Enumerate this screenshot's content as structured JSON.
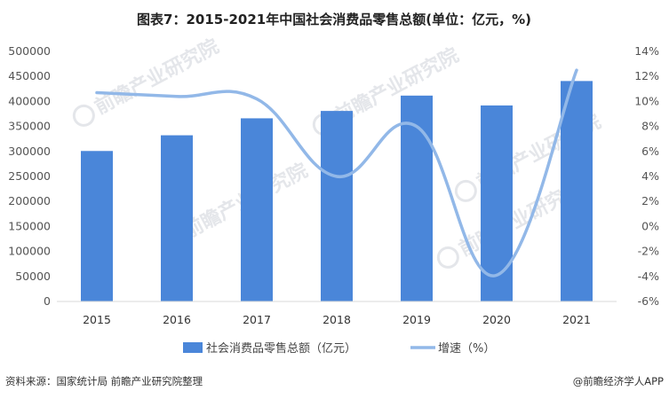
{
  "chart_data": {
    "type": "bar",
    "title": "图表7：2015-2021年中国社会消费品零售总额(单位：亿元，%)",
    "categories": [
      "2015",
      "2016",
      "2017",
      "2018",
      "2019",
      "2020",
      "2021"
    ],
    "series": [
      {
        "name": "社会消费品零售总额（亿元）",
        "type": "bar",
        "axis": "left",
        "values": [
          300931,
          332316,
          366262,
          380987,
          411649,
          391981,
          440823
        ]
      },
      {
        "name": "增速（%）",
        "type": "line",
        "axis": "right",
        "smooth": true,
        "values": [
          10.7,
          10.4,
          10.2,
          4.0,
          8.0,
          -3.9,
          12.5
        ]
      }
    ],
    "ylim_left": [
      0,
      500000
    ],
    "yticks_left": [
      "0",
      "50000",
      "100000",
      "150000",
      "200000",
      "250000",
      "300000",
      "350000",
      "400000",
      "450000",
      "500000"
    ],
    "ylim_right": [
      -6,
      14
    ],
    "yticks_right": [
      "-6%",
      "-4%",
      "-2%",
      "0%",
      "2%",
      "4%",
      "6%",
      "8%",
      "10%",
      "12%",
      "14%"
    ],
    "legend_position": "bottom",
    "grid": false,
    "colors": {
      "bar": "#4a86d9",
      "line": "#92b8e8"
    }
  },
  "footer": {
    "source": "资料来源：国家统计局 前瞻产业研究院整理",
    "brand": "@前瞻经济学人APP"
  },
  "watermark": {
    "text": "前瞻产业研究院",
    "icon": "leaf-logo-icon"
  }
}
